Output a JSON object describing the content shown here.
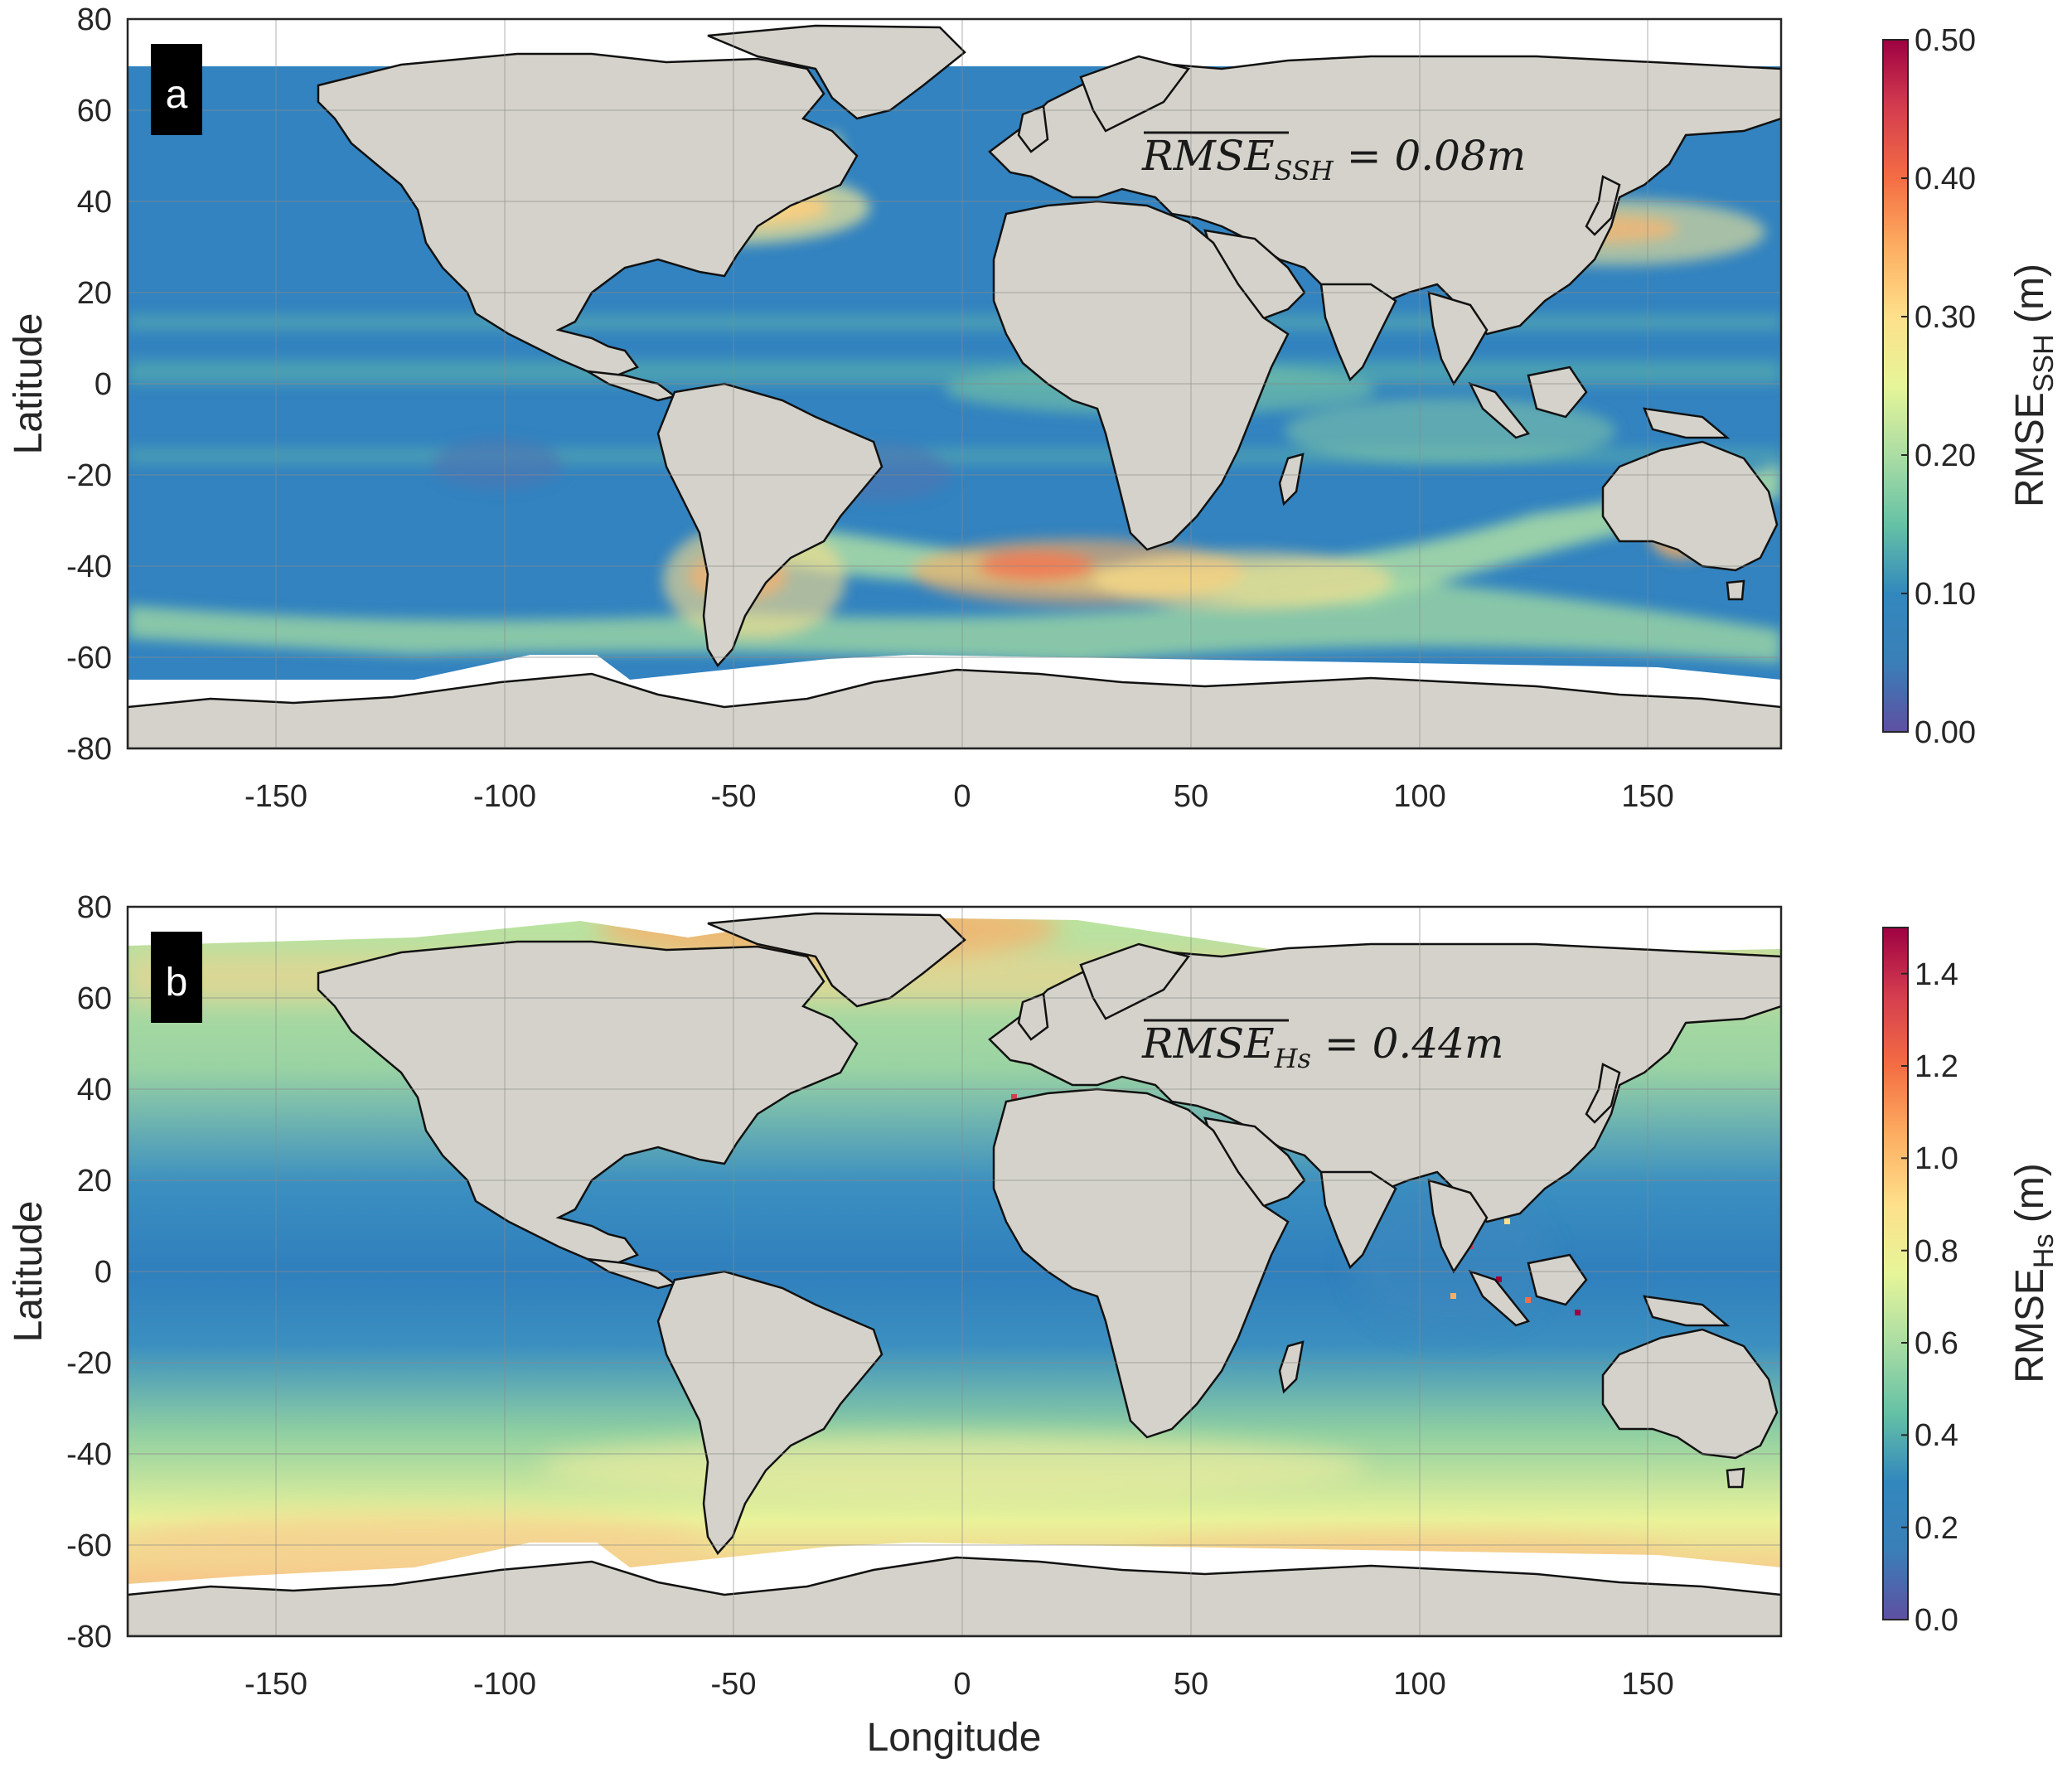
{
  "colors": {
    "land": "#d4d2ca",
    "ocean_low": "#2f7fbd",
    "no_data": "#ffffff",
    "frame": "#262626",
    "grid": "#8a8a8a",
    "panel_tag_bg": "#000000",
    "colormap": [
      "#5e4fa2",
      "#3a7fb8",
      "#3288bd",
      "#66c2a5",
      "#abdda4",
      "#e6f598",
      "#fee08b",
      "#fdae61",
      "#f46d43",
      "#d53e4f",
      "#9e0142"
    ]
  },
  "axes": {
    "x_label": "Longitude",
    "y_label": "Latitude",
    "x_range": [
      -182,
      180
    ],
    "y_range": [
      -80,
      80
    ],
    "x_ticks": [
      "-150",
      "-100",
      "-50",
      "0",
      "50",
      "100",
      "150"
    ],
    "y_ticks": [
      "80",
      "60",
      "40",
      "20",
      "0",
      "-20",
      "-40",
      "-60",
      "-80"
    ],
    "grid": true
  },
  "panels": [
    {
      "tag": "a",
      "stat_main": "RMSE",
      "stat_sub": "SSH",
      "stat_value": " = 0.08m",
      "colorbar": {
        "label_main": "RMSE",
        "label_sub": "SSH",
        "label_unit": " (m)",
        "ticks": [
          "0.50",
          "0.40",
          "0.30",
          "0.20",
          "0.10",
          "0.00"
        ],
        "range": [
          0,
          0.5
        ]
      }
    },
    {
      "tag": "b",
      "stat_main": "RMSE",
      "stat_sub": "Hs",
      "stat_value": " = 0.44m",
      "colorbar": {
        "label_main": "RMSE",
        "label_sub": "Hs",
        "label_unit": " (m)",
        "ticks": [
          "1.4",
          "1.2",
          "1.0",
          "0.8",
          "0.6",
          "0.4",
          "0.2",
          "0.0"
        ],
        "range": [
          0,
          1.5
        ]
      }
    }
  ]
}
